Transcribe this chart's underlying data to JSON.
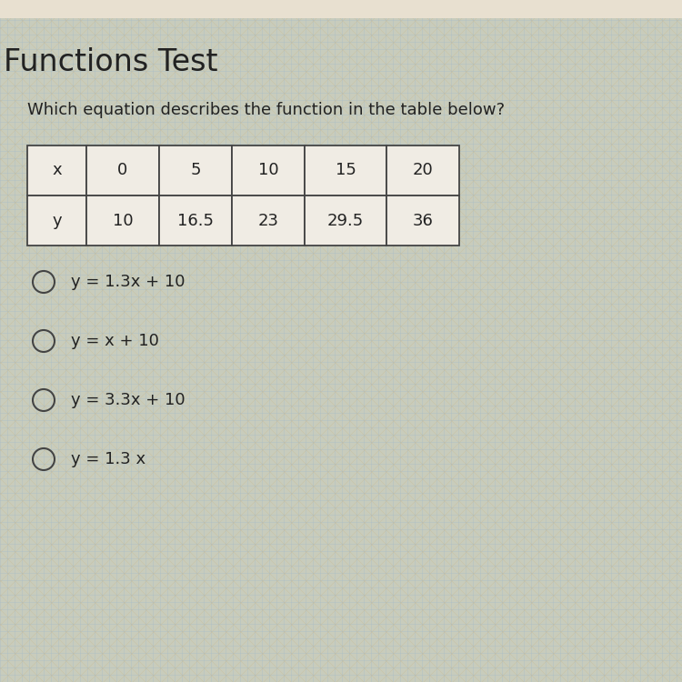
{
  "title": "Functions Test",
  "question": "Which equation describes the function in the table below?",
  "table_x_label": "x",
  "table_y_label": "y",
  "x_values": [
    "0",
    "5",
    "10",
    "15",
    "20"
  ],
  "y_values": [
    "10",
    "16.5",
    "23",
    "29.5",
    "36"
  ],
  "choices": [
    "y = 1.3x + 10",
    "y = x + 10",
    "y = 3.3x + 10",
    "y = 1.3 x"
  ],
  "bg_base_color": "#c8d4c0",
  "bg_grid_color_blue": "#a8c4d8",
  "bg_grid_color_tan": "#d8cdb0",
  "top_bar_color": "#d8d0c0",
  "table_bg_color": "#f0ece4",
  "table_edge_color": "#444444",
  "text_color": "#222222",
  "title_fontsize": 24,
  "question_fontsize": 13,
  "table_fontsize": 13,
  "choice_fontsize": 13,
  "circle_color": "#444444",
  "fig_width": 7.5,
  "fig_height": 7.5,
  "dpi": 100
}
